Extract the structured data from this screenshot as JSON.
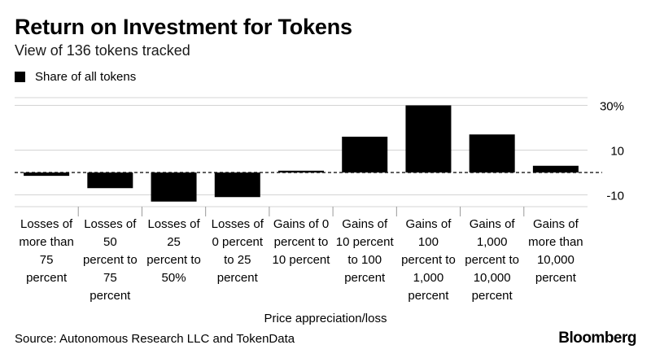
{
  "header": {
    "title": "Return on Investment for Tokens",
    "subtitle": "View of 136 tokens tracked"
  },
  "legend": {
    "label": "Share of all tokens",
    "color": "#000000"
  },
  "chart_data": {
    "type": "bar",
    "title": "Return on Investment for Tokens",
    "subtitle": "View of 136 tokens tracked",
    "xlabel": "Price appreciation/loss",
    "ylabel": "",
    "ylim": [
      -13,
      30
    ],
    "yticks": [
      30,
      10,
      -10
    ],
    "ytick_labels": [
      "30%",
      "10",
      "-10"
    ],
    "grid": true,
    "legend_position": "top-left",
    "categories": [
      [
        "Losses of",
        "more than",
        "75",
        "percent"
      ],
      [
        "Losses of",
        "50",
        "percent to",
        "75",
        "percent"
      ],
      [
        "Losses of",
        "25",
        "percent to",
        "50%"
      ],
      [
        "Losses of",
        "0 percent",
        "to 25",
        "percent"
      ],
      [
        "Gains of 0",
        "percent to",
        "10 percent"
      ],
      [
        "Gains of",
        "10 percent",
        "to 100",
        "percent"
      ],
      [
        "Gains of",
        "100",
        "percent to",
        "1,000",
        "percent"
      ],
      [
        "Gains of",
        "1,000",
        "percent to",
        "10,000",
        "percent"
      ],
      [
        "Gains of",
        "more than",
        "10,000",
        "percent"
      ]
    ],
    "series": [
      {
        "name": "Share of all tokens",
        "color": "#000000",
        "values": [
          -1.5,
          -7,
          -13,
          -11,
          0.8,
          16,
          30,
          17,
          3
        ]
      }
    ]
  },
  "footer": {
    "source": "Source: Autonomous Research LLC and TokenData",
    "brand": "Bloomberg"
  }
}
